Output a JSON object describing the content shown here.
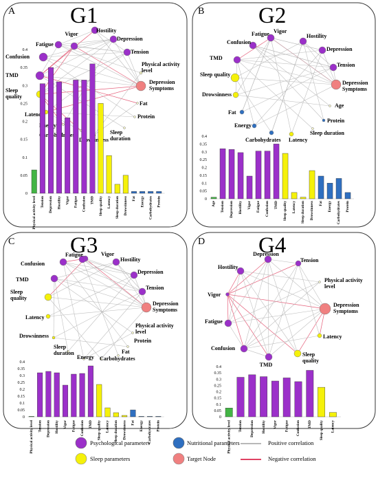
{
  "colors": {
    "psych": "#9b30c9",
    "sleep": "#f5f10a",
    "nutri": "#2f6fc0",
    "target": "#f08080",
    "activity": "#43b545",
    "positive": "#b8b8b8",
    "negative": "#e04262"
  },
  "panels": [
    {
      "id": "A",
      "title": "G1",
      "nodes": [
        {
          "label": "Vigor",
          "cat": "psych"
        },
        {
          "label": "Hostility",
          "cat": "psych"
        },
        {
          "label": "Depression",
          "cat": "psych"
        },
        {
          "label": "Tension",
          "cat": "psych"
        },
        {
          "label": "Physical activity level",
          "cat": "none"
        },
        {
          "label": "Depression Symptoms",
          "cat": "target"
        },
        {
          "label": "Fat",
          "cat": "none"
        },
        {
          "label": "Protein",
          "cat": "none"
        },
        {
          "label": "Sleep duration",
          "cat": "none"
        },
        {
          "label": "Drowsinness",
          "cat": "sleep"
        },
        {
          "label": "Carbohydrates",
          "cat": "none"
        },
        {
          "label": "Energy",
          "cat": "none"
        },
        {
          "label": "Latency",
          "cat": "sleep"
        },
        {
          "label": "Sleep quality",
          "cat": "sleep"
        },
        {
          "label": "TMD",
          "cat": "psych"
        },
        {
          "label": "Confusion",
          "cat": "psych"
        },
        {
          "label": "Fatigue",
          "cat": "psych"
        }
      ],
      "chart_data": {
        "type": "bar",
        "ylim": [
          0,
          0.4
        ],
        "yticks": [
          "0.4",
          "0.35",
          "0.3",
          "0.25",
          "0.2",
          "0.15",
          "0.1",
          "0.05",
          "0"
        ],
        "categories": [
          "Physical activity level",
          "Tension",
          "Depression",
          "Hostility",
          "Vigor",
          "Fatigue",
          "Confusion",
          "TMD",
          "Sleep quality",
          "Latency",
          "Sleep duration",
          "Drowsinness",
          "Fat",
          "Energy",
          "Carbohydrates",
          "Protein"
        ],
        "values": [
          0.065,
          0.305,
          0.35,
          0.31,
          0.21,
          0.315,
          0.315,
          0.36,
          0.25,
          0.105,
          0.025,
          0.05,
          0.005,
          0.005,
          0.005,
          0.005
        ],
        "cats": [
          "activity",
          "psych",
          "psych",
          "psych",
          "psych",
          "psych",
          "psych",
          "psych",
          "sleep",
          "sleep",
          "sleep",
          "sleep",
          "nutri",
          "nutri",
          "nutri",
          "nutri"
        ]
      }
    },
    {
      "id": "B",
      "title": "G2",
      "nodes": [
        {
          "label": "Vigor",
          "cat": "psych"
        },
        {
          "label": "Hostility",
          "cat": "psych"
        },
        {
          "label": "Depression",
          "cat": "psych"
        },
        {
          "label": "Tension",
          "cat": "psych"
        },
        {
          "label": "Depression Symptoms",
          "cat": "target"
        },
        {
          "label": "Age",
          "cat": "none"
        },
        {
          "label": "Protein",
          "cat": "nutri"
        },
        {
          "label": "Sleep duration",
          "cat": "none"
        },
        {
          "label": "Latency",
          "cat": "sleep"
        },
        {
          "label": "Carbohydrates",
          "cat": "nutri"
        },
        {
          "label": "Energy",
          "cat": "nutri"
        },
        {
          "label": "Fat",
          "cat": "nutri"
        },
        {
          "label": "Drowsinness",
          "cat": "sleep"
        },
        {
          "label": "Sleep quality",
          "cat": "sleep"
        },
        {
          "label": "TMD",
          "cat": "psych"
        },
        {
          "label": "Confusion",
          "cat": "psych"
        },
        {
          "label": "Fatigue",
          "cat": "psych"
        }
      ],
      "chart_data": {
        "type": "bar",
        "ylim": [
          0,
          0.4
        ],
        "yticks": [
          "0.4",
          "0.35",
          "0.3",
          "0.25",
          "0.2",
          "0.15",
          "0.1",
          "0.05",
          "0"
        ],
        "categories": [
          "Age",
          "Tension",
          "Depression",
          "Hostility",
          "Vigor",
          "Fatigue",
          "Confusion",
          "TMD",
          "Sleep quality",
          "Latency",
          "Sleep duration",
          "Drowsinness",
          "Fat",
          "Energy",
          "Carbohydrates",
          "Protein"
        ],
        "values": [
          0.01,
          0.32,
          0.315,
          0.295,
          0.145,
          0.305,
          0.305,
          0.35,
          0.29,
          0.04,
          0.01,
          0.18,
          0.145,
          0.1,
          0.13,
          0.04
        ],
        "cats": [
          "activity",
          "psych",
          "psych",
          "psych",
          "psych",
          "psych",
          "psych",
          "psych",
          "sleep",
          "sleep",
          "sleep",
          "sleep",
          "nutri",
          "nutri",
          "nutri",
          "nutri"
        ]
      }
    },
    {
      "id": "C",
      "title": "G3",
      "nodes": [
        {
          "label": "Vigor",
          "cat": "psych"
        },
        {
          "label": "Hostility",
          "cat": "psych"
        },
        {
          "label": "Depression",
          "cat": "psych"
        },
        {
          "label": "Tension",
          "cat": "psych"
        },
        {
          "label": "Depression Symptoms",
          "cat": "target"
        },
        {
          "label": "Physical activity level",
          "cat": "none"
        },
        {
          "label": "Protein",
          "cat": "none"
        },
        {
          "label": "Fat",
          "cat": "none"
        },
        {
          "label": "Carbohydrates",
          "cat": "none"
        },
        {
          "label": "Energy",
          "cat": "none"
        },
        {
          "label": "Sleep duration",
          "cat": "none"
        },
        {
          "label": "Drowsinness",
          "cat": "sleep"
        },
        {
          "label": "Latency",
          "cat": "sleep"
        },
        {
          "label": "Sleep quality",
          "cat": "sleep"
        },
        {
          "label": "TMD",
          "cat": "psych"
        },
        {
          "label": "Confusion",
          "cat": "psych"
        },
        {
          "label": "Fatigue",
          "cat": "psych"
        }
      ],
      "chart_data": {
        "type": "bar",
        "ylim": [
          0,
          0.4
        ],
        "yticks": [
          "0.4",
          "0.35",
          "0.3",
          "0.25",
          "0.2",
          "0.15",
          "0.1",
          "0.05",
          "0"
        ],
        "categories": [
          "Physical activity level",
          "Tension",
          "Depression",
          "Hostility",
          "Vigor",
          "Fatigue",
          "Confusion",
          "TMD",
          "Sleep quality",
          "Latency",
          "Sleep duration",
          "Drowsinness",
          "Fat",
          "Energy",
          "Carbohydrates",
          "Protein"
        ],
        "values": [
          0.003,
          0.32,
          0.33,
          0.32,
          0.23,
          0.31,
          0.315,
          0.37,
          0.235,
          0.065,
          0.03,
          0.01,
          0.05,
          0.003,
          0.003,
          0.003
        ],
        "cats": [
          "activity",
          "psych",
          "psych",
          "psych",
          "psych",
          "psych",
          "psych",
          "psych",
          "sleep",
          "sleep",
          "sleep",
          "sleep",
          "nutri",
          "nutri",
          "nutri",
          "nutri"
        ]
      }
    },
    {
      "id": "D",
      "title": "G4",
      "nodes": [
        {
          "label": "Depression",
          "cat": "psych"
        },
        {
          "label": "Tension",
          "cat": "psych"
        },
        {
          "label": "Physical activity level",
          "cat": "none"
        },
        {
          "label": "Depression Symptoms",
          "cat": "target"
        },
        {
          "label": "Latency",
          "cat": "sleep"
        },
        {
          "label": "Sleep quality",
          "cat": "sleep"
        },
        {
          "label": "TMD",
          "cat": "psych"
        },
        {
          "label": "Confusion",
          "cat": "psych"
        },
        {
          "label": "Fatigue",
          "cat": "psych"
        },
        {
          "label": "Vigor",
          "cat": "psych"
        },
        {
          "label": "Hostility",
          "cat": "psych"
        }
      ],
      "chart_data": {
        "type": "bar",
        "ylim": [
          0,
          0.4
        ],
        "yticks": [
          "0.4",
          "0.35",
          "0.3",
          "0.25",
          "0.2",
          "0.15",
          "0.1",
          "0.05",
          "0"
        ],
        "categories": [
          "Physical activity level",
          "Tension",
          "Depression",
          "Hostility",
          "Vigor",
          "Fatigue",
          "Confusion",
          "TMD",
          "Sleep quality",
          "Latency"
        ],
        "values": [
          0.07,
          0.315,
          0.335,
          0.32,
          0.285,
          0.31,
          0.28,
          0.37,
          0.235,
          0.035
        ],
        "cats": [
          "activity",
          "psych",
          "psych",
          "psych",
          "psych",
          "psych",
          "psych",
          "psych",
          "sleep",
          "sleep"
        ]
      }
    }
  ],
  "legend": {
    "psych": "Psychological parameters",
    "nutri": "Nutritional parameters",
    "positive": "Positive correlation",
    "sleep": "Sleep parameters",
    "target": "Target Node",
    "negative": "Negative correlation"
  }
}
